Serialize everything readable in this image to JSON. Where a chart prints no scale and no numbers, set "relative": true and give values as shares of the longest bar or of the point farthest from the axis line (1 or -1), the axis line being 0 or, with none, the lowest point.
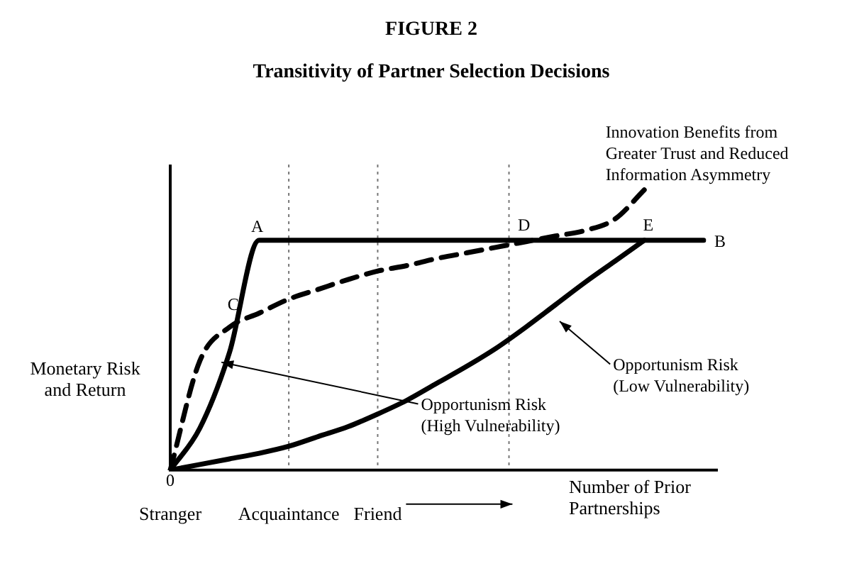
{
  "chart_data": {
    "type": "line",
    "title": "FIGURE 2",
    "subtitle": "Transitivity of Partner Selection Decisions",
    "ylabel": "Monetary Risk and Return",
    "xlabel": "Number of Prior Partnerships",
    "relative": true,
    "categories": [
      "Stranger",
      null,
      null,
      null,
      "Acquaintance",
      null,
      null,
      "Friend",
      null,
      null,
      null,
      null,
      null,
      null,
      null,
      null,
      null,
      null,
      null
    ],
    "legend": false,
    "marker": "none",
    "series": [
      {
        "color": "#000000",
        "line_style": "solid",
        "values": [
          0,
          0.15,
          0.42,
          0.82,
          0.82,
          0.82,
          0.82,
          0.82,
          0.82,
          0.82,
          0.82,
          0.82,
          0.82,
          0.82,
          0.82,
          0.82,
          0.82,
          0.82,
          0.82
        ]
      },
      {
        "color": "#000000",
        "line_style": "solid",
        "values": [
          0,
          0.02,
          0.04,
          0.06,
          0.085,
          0.12,
          0.155,
          0.2,
          0.25,
          0.31,
          0.37,
          0.435,
          0.51,
          0.59,
          0.67,
          0.745,
          0.82,
          null,
          null
        ]
      },
      {
        "color": "#000000",
        "line_style": "dashed",
        "values": [
          0,
          0.39,
          0.51,
          0.56,
          0.61,
          0.645,
          0.68,
          0.71,
          0.73,
          0.755,
          0.775,
          0.795,
          0.815,
          0.835,
          0.855,
          0.895,
          1,
          null,
          null
        ]
      }
    ],
    "ref_lines": [
      {
        "axis": "x",
        "value": "Acquaintance",
        "line_style": "dotted",
        "color": "#777777"
      },
      {
        "axis": "x",
        "value": "Friend",
        "line_style": "dotted",
        "color": "#777777"
      }
    ],
    "annotations": [
      "0",
      "A",
      "B",
      "C",
      "D",
      "E",
      "Innovation Benefits from Greater Trust and Reduced Information Asymmetry",
      "Opportunism Risk (High Vulnerability)",
      "Opportunism Risk (Low Vulnerability)"
    ]
  }
}
